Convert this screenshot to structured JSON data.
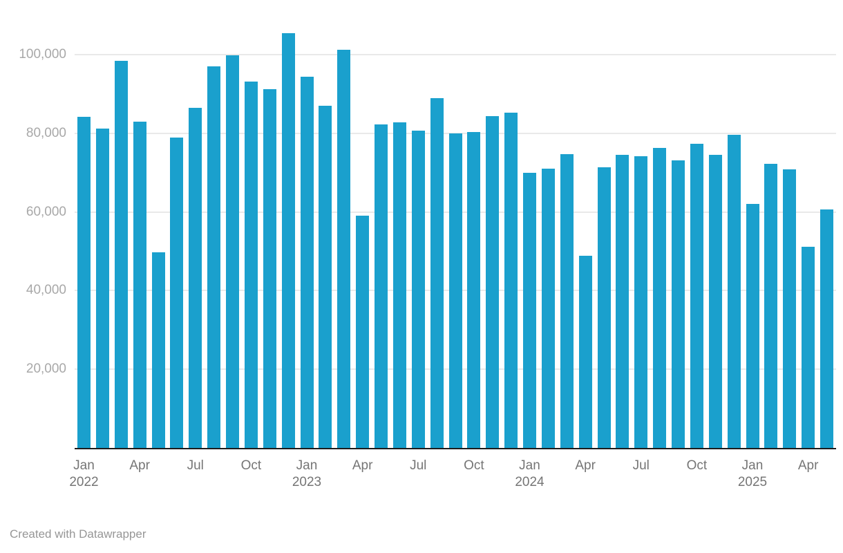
{
  "footer": {
    "credit": "Created with Datawrapper"
  },
  "chart_data": {
    "type": "bar",
    "title": "",
    "xlabel": "",
    "ylabel": "",
    "legend": "none",
    "grid": "horizontal-only",
    "bar_color": "#1aa0cd",
    "axis_line_color": "#1c1c1c",
    "gridline_color": "#e9e9e9",
    "ylim": [
      0,
      112000
    ],
    "yticks": [
      {
        "value": 20000,
        "label": "20,000"
      },
      {
        "value": 40000,
        "label": "40,000"
      },
      {
        "value": 60000,
        "label": "60,000"
      },
      {
        "value": 80000,
        "label": "80,000"
      },
      {
        "value": 100000,
        "label": "100,000"
      }
    ],
    "x_tick_pattern": [
      "Jan",
      "Apr",
      "Jul",
      "Oct"
    ],
    "categories": [
      "Jan 2022",
      "Feb 2022",
      "Mar 2022",
      "Apr 2022",
      "May 2022",
      "Jun 2022",
      "Jul 2022",
      "Aug 2022",
      "Sep 2022",
      "Oct 2022",
      "Nov 2022",
      "Dec 2022",
      "Jan 2023",
      "Feb 2023",
      "Mar 2023",
      "Apr 2023",
      "May 2023",
      "Jun 2023",
      "Jul 2023",
      "Aug 2023",
      "Sep 2023",
      "Oct 2023",
      "Nov 2023",
      "Dec 2023",
      "Jan 2024",
      "Feb 2024",
      "Mar 2024",
      "Apr 2024",
      "May 2024",
      "Jun 2024",
      "Jul 2024",
      "Aug 2024",
      "Sep 2024",
      "Oct 2024",
      "Nov 2024",
      "Dec 2024",
      "Jan 2025",
      "Feb 2025",
      "Mar 2025",
      "Apr 2025",
      "May 2025"
    ],
    "values": [
      84200,
      81200,
      98500,
      82900,
      49700,
      79000,
      86400,
      97000,
      99900,
      93100,
      91300,
      105500,
      94300,
      87000,
      101300,
      59100,
      82300,
      82700,
      80600,
      89000,
      80000,
      80400,
      84300,
      85300,
      69900,
      71000,
      74700,
      48800,
      71400,
      74600,
      74200,
      76200,
      73200,
      77400,
      74600,
      79600,
      62000,
      72200,
      70900,
      51200,
      60700
    ]
  }
}
